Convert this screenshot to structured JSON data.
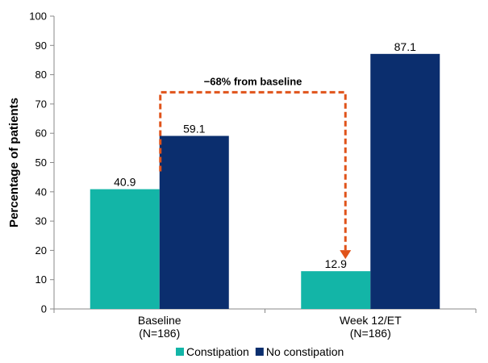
{
  "chart_data": {
    "type": "bar",
    "categories": [
      "Baseline",
      "Week 12/ET"
    ],
    "category_sublabels": [
      "(N=186)",
      "(N=186)"
    ],
    "series": [
      {
        "name": "Constipation",
        "values": [
          40.9,
          12.9
        ],
        "color": "#13b5a7"
      },
      {
        "name": "No constipation",
        "values": [
          59.1,
          87.1
        ],
        "color": "#0b2e6e"
      }
    ],
    "data_labels": [
      "40.9",
      "59.1",
      "12.9",
      "87.1"
    ],
    "ylabel": "Percentage of patients",
    "ylim": [
      0,
      100
    ],
    "yticks": [
      "0",
      "10",
      "20",
      "30",
      "40",
      "50",
      "60",
      "70",
      "80",
      "90",
      "100"
    ],
    "grid": false,
    "legend_position": "bottom",
    "annotation": {
      "text": "−68% from baseline",
      "color": "#e0531a",
      "style": "dashed arrow from Baseline Constipation bar to Week 12/ET Constipation bar"
    }
  }
}
